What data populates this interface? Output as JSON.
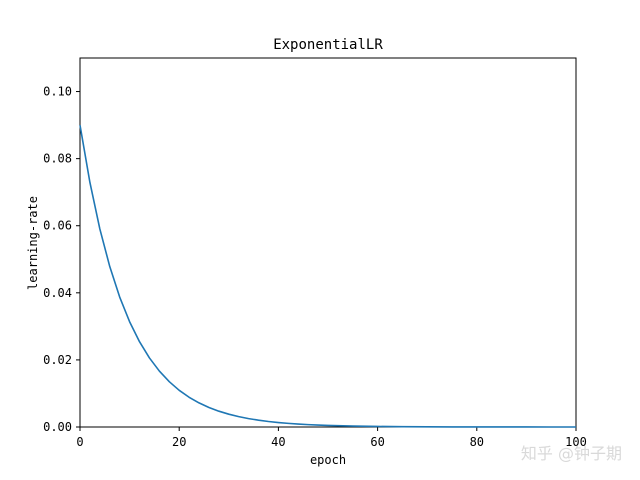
{
  "chart_data": {
    "type": "line",
    "title": "ExponentialLR",
    "xlabel": "epoch",
    "ylabel": "learning-rate",
    "xlim": [
      0,
      100
    ],
    "ylim": [
      0,
      0.11
    ],
    "xticks": [
      0,
      20,
      40,
      60,
      80,
      100
    ],
    "yticks": [
      0.0,
      0.02,
      0.04,
      0.06,
      0.08,
      0.1
    ],
    "ytick_labels": [
      "0.00",
      "0.02",
      "0.04",
      "0.06",
      "0.08",
      "0.10"
    ],
    "grid": false,
    "legend": "none",
    "series": [
      {
        "color": "#1f77b4",
        "x": [
          0,
          2,
          4,
          6,
          8,
          10,
          12,
          14,
          16,
          18,
          20,
          22,
          24,
          26,
          28,
          30,
          32,
          34,
          36,
          38,
          40,
          42,
          44,
          46,
          48,
          50,
          55,
          60,
          65,
          70,
          75,
          80,
          85,
          90,
          95,
          100
        ],
        "y": [
          0.09,
          0.0729,
          0.05905,
          0.04783,
          0.03874,
          0.03138,
          0.02542,
          0.02059,
          0.01668,
          0.01351,
          0.01094,
          0.00886,
          0.00718,
          0.00582,
          0.00471,
          0.00382,
          0.00309,
          0.0025,
          0.00203,
          0.00164,
          0.00133,
          0.00108,
          0.00087,
          0.00071,
          0.00057,
          0.00046,
          0.00028,
          0.00016,
          0.0001,
          6e-05,
          3e-05,
          2e-05,
          1e-05,
          1e-05,
          0.0,
          0.0
        ]
      }
    ]
  },
  "watermark": {
    "text": "知乎 @钟子期"
  }
}
